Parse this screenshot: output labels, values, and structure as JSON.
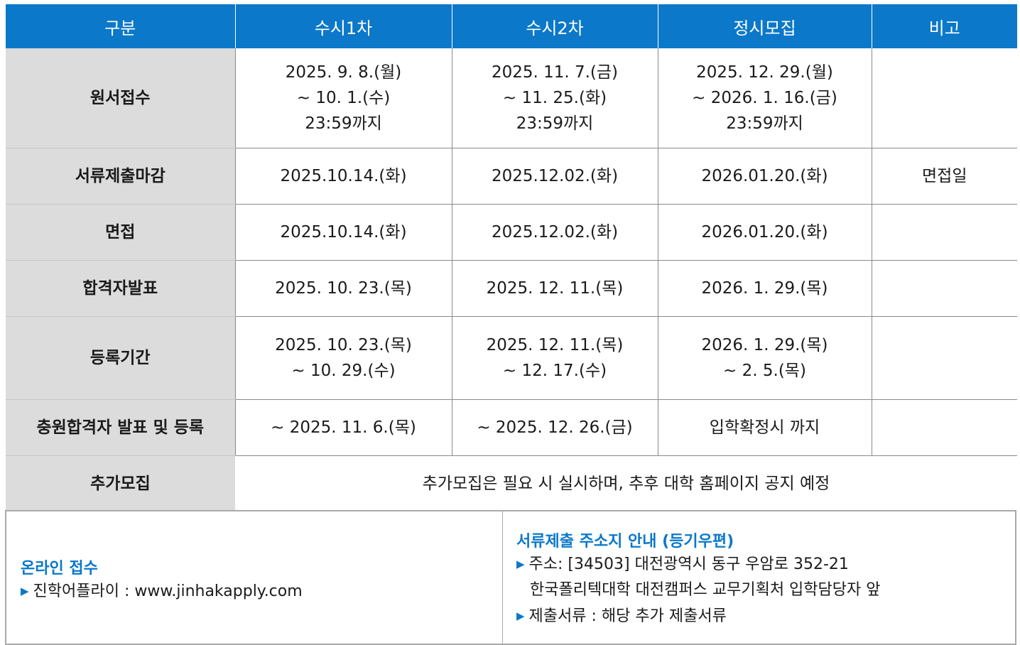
{
  "table": {
    "headers": [
      "구분",
      "수시1차",
      "수시2차",
      "정시모집",
      "비고"
    ],
    "rows": {
      "application": {
        "label": "원서접수",
        "susi1": [
          "2025. 9. 8.(월)",
          "~ 10. 1.(수)",
          "23:59까지"
        ],
        "susi2": [
          "2025. 11. 7.(금)",
          "~ 11. 25.(화)",
          "23:59까지"
        ],
        "jeongsi": [
          "2025. 12. 29.(월)",
          "~ 2026. 1. 16.(금)",
          "23:59까지"
        ],
        "note": ""
      },
      "documents": {
        "label": "서류제출마감",
        "susi1": "2025.10.14.(화)",
        "susi2": "2025.12.02.(화)",
        "jeongsi": "2026.01.20.(화)",
        "note": "면접일"
      },
      "interview": {
        "label": "면접",
        "susi1": "2025.10.14.(화)",
        "susi2": "2025.12.02.(화)",
        "jeongsi": "2026.01.20.(화)",
        "note": ""
      },
      "announcement": {
        "label": "합격자발표",
        "susi1": "2025. 10. 23.(목)",
        "susi2": "2025. 12. 11.(목)",
        "jeongsi": "2026. 1. 29.(목)",
        "note": ""
      },
      "registration": {
        "label": "등록기간",
        "susi1": [
          "2025. 10. 23.(목)",
          "~ 10. 29.(수)"
        ],
        "susi2": [
          "2025. 12. 11.(목)",
          "~ 12. 17.(수)"
        ],
        "jeongsi": [
          "2026. 1. 29.(목)",
          "~ 2. 5.(목)"
        ],
        "note": ""
      },
      "additional_pass": {
        "label": "충원합격자 발표 및 등록",
        "susi1": "~ 2025. 11. 6.(목)",
        "susi2": "~ 2025. 12. 26.(금)",
        "jeongsi": "입학확정시 까지",
        "note": ""
      },
      "extra_recruit": {
        "label": "추가모집",
        "text": "추가모집은 필요 시 실시하며, 추후 대학 홈페이지 공지 예정"
      }
    }
  },
  "info": {
    "online": {
      "title": "온라인 접수",
      "line": "진학어플라이 : www.jinhakapply.com"
    },
    "mail": {
      "title": "서류제출 주소지 안내 (등기우편)",
      "address_line1": "주소: [34503] 대전광역시 동구 우암로 352-21",
      "address_line2": "한국폴리텍대학 대전캠퍼스 교무기획처 입학담당자 앞",
      "documents_line": "제출서류 : 해당 추가 제출서류"
    }
  },
  "colors": {
    "header_bg": "#0b78c9",
    "row_head_bg": "#dcdcdc",
    "accent": "#0b78c9"
  }
}
